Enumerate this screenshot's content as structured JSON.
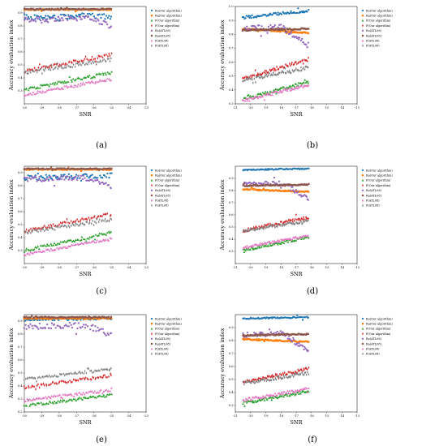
{
  "chart_data": [
    {
      "type": "scatter",
      "panel_label": "(a)",
      "xlabel": "SNR",
      "ylabel": "Accuracy evaluation index",
      "xlim": [
        -30,
        -23
      ],
      "ylim": [
        0.2,
        0.95
      ],
      "xticks": [
        "-30",
        "-29",
        "-28",
        "-27",
        "-26",
        "-25",
        "-24",
        "-23"
      ],
      "yticks": [
        "0.3",
        "0.4",
        "0.5",
        "0.6",
        "0.7",
        "0.8",
        "0.9"
      ],
      "x_range_data": [
        -30,
        -25
      ],
      "legend_position": "right",
      "series": [
        {
          "name": "Ro(Our algorithm)",
          "color": "#1f77b4",
          "marker": "circle",
          "profile": [
            [
              0,
              0.87
            ],
            [
              0.3,
              0.86
            ],
            [
              0.6,
              0.88
            ],
            [
              1,
              0.87
            ]
          ],
          "noise": 0.02
        },
        {
          "name": "Ra(Our algorithm)",
          "color": "#ff7f0e",
          "marker": "square",
          "profile": [
            [
              0,
              0.925
            ],
            [
              1,
              0.925
            ]
          ],
          "noise": 0.004
        },
        {
          "name": "P(Our algorithm)",
          "color": "#2ca02c",
          "marker": "triangle",
          "profile": [
            [
              0,
              0.31
            ],
            [
              1,
              0.44
            ]
          ],
          "noise": 0.012
        },
        {
          "name": "F(Our algorithm)",
          "color": "#d62728",
          "marker": "diamond",
          "profile": [
            [
              0,
              0.45
            ],
            [
              1,
              0.58
            ]
          ],
          "noise": 0.012
        },
        {
          "name": "Ro(ATL08)",
          "color": "#9467bd",
          "marker": "circle",
          "profile": [
            [
              0,
              0.85
            ],
            [
              0.5,
              0.86
            ],
            [
              0.8,
              0.86
            ],
            [
              1,
              0.79
            ]
          ],
          "noise": 0.02
        },
        {
          "name": "Ra(ATL08)",
          "color": "#8c564b",
          "marker": "square",
          "profile": [
            [
              0,
              0.93
            ],
            [
              1,
              0.93
            ]
          ],
          "noise": 0.004
        },
        {
          "name": "P(ATL08)",
          "color": "#e377c2",
          "marker": "triangle",
          "profile": [
            [
              0,
              0.27
            ],
            [
              1,
              0.39
            ]
          ],
          "noise": 0.01
        },
        {
          "name": "F(ATL08)",
          "color": "#7f7f7f",
          "marker": "diamond",
          "profile": [
            [
              0,
              0.44
            ],
            [
              1,
              0.54
            ]
          ],
          "noise": 0.012
        }
      ]
    },
    {
      "type": "scatter",
      "panel_label": "(b)",
      "xlabel": "SNR",
      "ylabel": "Accuracy evaluation index",
      "xlim": [
        -21,
        -13
      ],
      "ylim": [
        0.3,
        1.0
      ],
      "xticks": [
        "-21",
        "-20",
        "-19",
        "-18",
        "-17",
        "-16",
        "-15",
        "-14",
        "-13"
      ],
      "yticks": [
        "0.3",
        "0.4",
        "0.5",
        "0.6",
        "0.7",
        "0.8",
        "0.9",
        "1.0"
      ],
      "x_range_data": [
        -20.5,
        -16.2
      ],
      "legend_position": "right",
      "series": [
        {
          "name": "Ro(Our algorithm)",
          "color": "#1f77b4",
          "marker": "circle",
          "profile": [
            [
              0,
              0.92
            ],
            [
              1,
              0.97
            ]
          ],
          "noise": 0.01
        },
        {
          "name": "Ra(Our algorithm)",
          "color": "#ff7f0e",
          "marker": "square",
          "profile": [
            [
              0,
              0.84
            ],
            [
              1,
              0.81
            ]
          ],
          "noise": 0.005
        },
        {
          "name": "P(Our algorithm)",
          "color": "#2ca02c",
          "marker": "triangle",
          "profile": [
            [
              0,
              0.33
            ],
            [
              1,
              0.46
            ]
          ],
          "noise": 0.012
        },
        {
          "name": "F(Our algorithm)",
          "color": "#d62728",
          "marker": "diamond",
          "profile": [
            [
              0,
              0.48
            ],
            [
              1,
              0.62
            ]
          ],
          "noise": 0.012
        },
        {
          "name": "Ro(ATL08)",
          "color": "#9467bd",
          "marker": "circle",
          "profile": [
            [
              0,
              0.84
            ],
            [
              0.6,
              0.85
            ],
            [
              1,
              0.72
            ]
          ],
          "noise": 0.02
        },
        {
          "name": "Ra(ATL08)",
          "color": "#8c564b",
          "marker": "square",
          "profile": [
            [
              0,
              0.83
            ],
            [
              1,
              0.84
            ]
          ],
          "noise": 0.005
        },
        {
          "name": "P(ATL08)",
          "color": "#e377c2",
          "marker": "triangle",
          "profile": [
            [
              0,
              0.32
            ],
            [
              1,
              0.44
            ]
          ],
          "noise": 0.012
        },
        {
          "name": "F(ATL08)",
          "color": "#7f7f7f",
          "marker": "diamond",
          "profile": [
            [
              0,
              0.47
            ],
            [
              1,
              0.56
            ]
          ],
          "noise": 0.012
        }
      ]
    },
    {
      "type": "scatter",
      "panel_label": "(c)",
      "xlabel": "SNR",
      "ylabel": "Accuracy evaluation index",
      "xlim": [
        -30,
        -23
      ],
      "ylim": [
        0.2,
        0.95
      ],
      "xticks": [
        "-30",
        "-29",
        "-28",
        "-27",
        "-26",
        "-25",
        "-24",
        "-23"
      ],
      "yticks": [
        "0.3",
        "0.4",
        "0.5",
        "0.6",
        "0.7",
        "0.8",
        "0.9"
      ],
      "x_range_data": [
        -30,
        -25
      ],
      "legend_position": "right",
      "series": [
        {
          "name": "Ro(Our algorithm)",
          "color": "#1f77b4",
          "marker": "circle",
          "profile": [
            [
              0,
              0.86
            ],
            [
              0.5,
              0.87
            ],
            [
              1,
              0.88
            ]
          ],
          "noise": 0.02
        },
        {
          "name": "Ra(Our algorithm)",
          "color": "#ff7f0e",
          "marker": "square",
          "profile": [
            [
              0,
              0.925
            ],
            [
              1,
              0.925
            ]
          ],
          "noise": 0.004
        },
        {
          "name": "P(Our algorithm)",
          "color": "#2ca02c",
          "marker": "triangle",
          "profile": [
            [
              0,
              0.3
            ],
            [
              1,
              0.44
            ]
          ],
          "noise": 0.012
        },
        {
          "name": "F(Our algorithm)",
          "color": "#d62728",
          "marker": "diamond",
          "profile": [
            [
              0,
              0.45
            ],
            [
              1,
              0.58
            ]
          ],
          "noise": 0.012
        },
        {
          "name": "Ro(ATL08)",
          "color": "#9467bd",
          "marker": "circle",
          "profile": [
            [
              0,
              0.85
            ],
            [
              0.7,
              0.86
            ],
            [
              1,
              0.79
            ]
          ],
          "noise": 0.02
        },
        {
          "name": "Ra(ATL08)",
          "color": "#8c564b",
          "marker": "square",
          "profile": [
            [
              0,
              0.93
            ],
            [
              1,
              0.93
            ]
          ],
          "noise": 0.004
        },
        {
          "name": "P(ATL08)",
          "color": "#e377c2",
          "marker": "triangle",
          "profile": [
            [
              0,
              0.27
            ],
            [
              1,
              0.39
            ]
          ],
          "noise": 0.01
        },
        {
          "name": "F(ATL08)",
          "color": "#7f7f7f",
          "marker": "diamond",
          "profile": [
            [
              0,
              0.44
            ],
            [
              1,
              0.54
            ]
          ],
          "noise": 0.012
        }
      ]
    },
    {
      "type": "scatter",
      "panel_label": "(d)",
      "xlabel": "SNR",
      "ylabel": "Accuracy evaluation index",
      "xlim": [
        -21,
        -13
      ],
      "ylim": [
        0.2,
        1.0
      ],
      "xticks": [
        "-21",
        "-20",
        "-19",
        "-18",
        "-17",
        "-16",
        "-15",
        "-14",
        "-13"
      ],
      "yticks": [
        "0.3",
        "0.4",
        "0.5",
        "0.6",
        "0.7",
        "0.8",
        "0.9"
      ],
      "x_range_data": [
        -20.5,
        -16.2
      ],
      "legend_position": "right",
      "series": [
        {
          "name": "Ro(Our algorithm)",
          "color": "#1f77b4",
          "marker": "circle",
          "profile": [
            [
              0,
              0.97
            ],
            [
              1,
              0.98
            ]
          ],
          "noise": 0.005
        },
        {
          "name": "Ra(Our algorithm)",
          "color": "#ff7f0e",
          "marker": "square",
          "profile": [
            [
              0,
              0.81
            ],
            [
              1,
              0.79
            ]
          ],
          "noise": 0.005
        },
        {
          "name": "P(Our algorithm)",
          "color": "#2ca02c",
          "marker": "triangle",
          "profile": [
            [
              0,
              0.31
            ],
            [
              1,
              0.42
            ]
          ],
          "noise": 0.012
        },
        {
          "name": "F(Our algorithm)",
          "color": "#d62728",
          "marker": "diamond",
          "profile": [
            [
              0,
              0.47
            ],
            [
              1,
              0.58
            ]
          ],
          "noise": 0.012
        },
        {
          "name": "Ro(ATL08)",
          "color": "#9467bd",
          "marker": "circle",
          "profile": [
            [
              0,
              0.85
            ],
            [
              0.6,
              0.86
            ],
            [
              1,
              0.73
            ]
          ],
          "noise": 0.02
        },
        {
          "name": "Ra(ATL08)",
          "color": "#8c564b",
          "marker": "square",
          "profile": [
            [
              0,
              0.84
            ],
            [
              1,
              0.85
            ]
          ],
          "noise": 0.005
        },
        {
          "name": "P(ATL08)",
          "color": "#e377c2",
          "marker": "triangle",
          "profile": [
            [
              0,
              0.33
            ],
            [
              1,
              0.43
            ]
          ],
          "noise": 0.012
        },
        {
          "name": "F(ATL08)",
          "color": "#7f7f7f",
          "marker": "diamond",
          "profile": [
            [
              0,
              0.47
            ],
            [
              1,
              0.55
            ]
          ],
          "noise": 0.012
        }
      ]
    },
    {
      "type": "scatter",
      "panel_label": "(e)",
      "xlabel": "SNR",
      "ylabel": "Accuracy evaluation index",
      "xlim": [
        -30,
        -23
      ],
      "ylim": [
        0.2,
        0.95
      ],
      "xticks": [
        "-30",
        "-29",
        "-28",
        "-27",
        "-26",
        "-25",
        "-24",
        "-23"
      ],
      "yticks": [
        "0.2",
        "0.3",
        "0.4",
        "0.5",
        "0.6",
        "0.7",
        "0.8",
        "0.9"
      ],
      "x_range_data": [
        -30,
        -25
      ],
      "legend_position": "right",
      "series": [
        {
          "name": "Ro(Our algorithm)",
          "color": "#1f77b4",
          "marker": "circle",
          "profile": [
            [
              0,
              0.91
            ],
            [
              1,
              0.92
            ]
          ],
          "noise": 0.008
        },
        {
          "name": "Ra(Our algorithm)",
          "color": "#ff7f0e",
          "marker": "square",
          "profile": [
            [
              0,
              0.92
            ],
            [
              1,
              0.92
            ]
          ],
          "noise": 0.004
        },
        {
          "name": "P(Our algorithm)",
          "color": "#2ca02c",
          "marker": "triangle",
          "profile": [
            [
              0,
              0.25
            ],
            [
              1,
              0.33
            ]
          ],
          "noise": 0.01
        },
        {
          "name": "F(Our algorithm)",
          "color": "#d62728",
          "marker": "diamond",
          "profile": [
            [
              0,
              0.39
            ],
            [
              1,
              0.48
            ]
          ],
          "noise": 0.01
        },
        {
          "name": "Ro(ATL08)",
          "color": "#9467bd",
          "marker": "circle",
          "profile": [
            [
              0,
              0.86
            ],
            [
              0.7,
              0.87
            ],
            [
              1,
              0.8
            ]
          ],
          "noise": 0.025
        },
        {
          "name": "Ra(ATL08)",
          "color": "#8c564b",
          "marker": "square",
          "profile": [
            [
              0,
              0.93
            ],
            [
              1,
              0.93
            ]
          ],
          "noise": 0.004
        },
        {
          "name": "P(ATL08)",
          "color": "#e377c2",
          "marker": "triangle",
          "profile": [
            [
              0,
              0.29
            ],
            [
              1,
              0.37
            ]
          ],
          "noise": 0.01
        },
        {
          "name": "F(ATL08)",
          "color": "#7f7f7f",
          "marker": "diamond",
          "profile": [
            [
              0,
              0.45
            ],
            [
              1,
              0.53
            ]
          ],
          "noise": 0.01
        }
      ]
    },
    {
      "type": "scatter",
      "panel_label": "(f)",
      "xlabel": "SNR",
      "ylabel": "Accuracy evaluation index",
      "xlim": [
        -21,
        -13
      ],
      "ylim": [
        0.25,
        1.0
      ],
      "xticks": [
        "-21",
        "-20",
        "-19",
        "-18",
        "-17",
        "-16",
        "-15",
        "-14",
        "-13"
      ],
      "yticks": [
        "0.3",
        "0.4",
        "0.5",
        "0.6",
        "0.7",
        "0.8",
        "0.9"
      ],
      "x_range_data": [
        -20.5,
        -16.2
      ],
      "legend_position": "right",
      "series": [
        {
          "name": "Ro(Our algorithm)",
          "color": "#1f77b4",
          "marker": "circle",
          "profile": [
            [
              0,
              0.97
            ],
            [
              1,
              0.98
            ]
          ],
          "noise": 0.005
        },
        {
          "name": "Ra(Our algorithm)",
          "color": "#ff7f0e",
          "marker": "square",
          "profile": [
            [
              0,
              0.81
            ],
            [
              1,
              0.79
            ]
          ],
          "noise": 0.005
        },
        {
          "name": "P(Our algorithm)",
          "color": "#2ca02c",
          "marker": "triangle",
          "profile": [
            [
              0,
              0.32
            ],
            [
              1,
              0.41
            ]
          ],
          "noise": 0.012
        },
        {
          "name": "F(Our algorithm)",
          "color": "#d62728",
          "marker": "diamond",
          "profile": [
            [
              0,
              0.48
            ],
            [
              1,
              0.58
            ]
          ],
          "noise": 0.012
        },
        {
          "name": "Ro(ATL08)",
          "color": "#9467bd",
          "marker": "circle",
          "profile": [
            [
              0,
              0.84
            ],
            [
              0.6,
              0.86
            ],
            [
              1,
              0.72
            ]
          ],
          "noise": 0.02
        },
        {
          "name": "Ra(ATL08)",
          "color": "#8c564b",
          "marker": "square",
          "profile": [
            [
              0,
              0.84
            ],
            [
              1,
              0.85
            ]
          ],
          "noise": 0.005
        },
        {
          "name": "P(ATL08)",
          "color": "#e377c2",
          "marker": "triangle",
          "profile": [
            [
              0,
              0.34
            ],
            [
              1,
              0.43
            ]
          ],
          "noise": 0.012
        },
        {
          "name": "F(ATL08)",
          "color": "#7f7f7f",
          "marker": "diamond",
          "profile": [
            [
              0,
              0.47
            ],
            [
              1,
              0.55
            ]
          ],
          "noise": 0.012
        }
      ]
    }
  ]
}
